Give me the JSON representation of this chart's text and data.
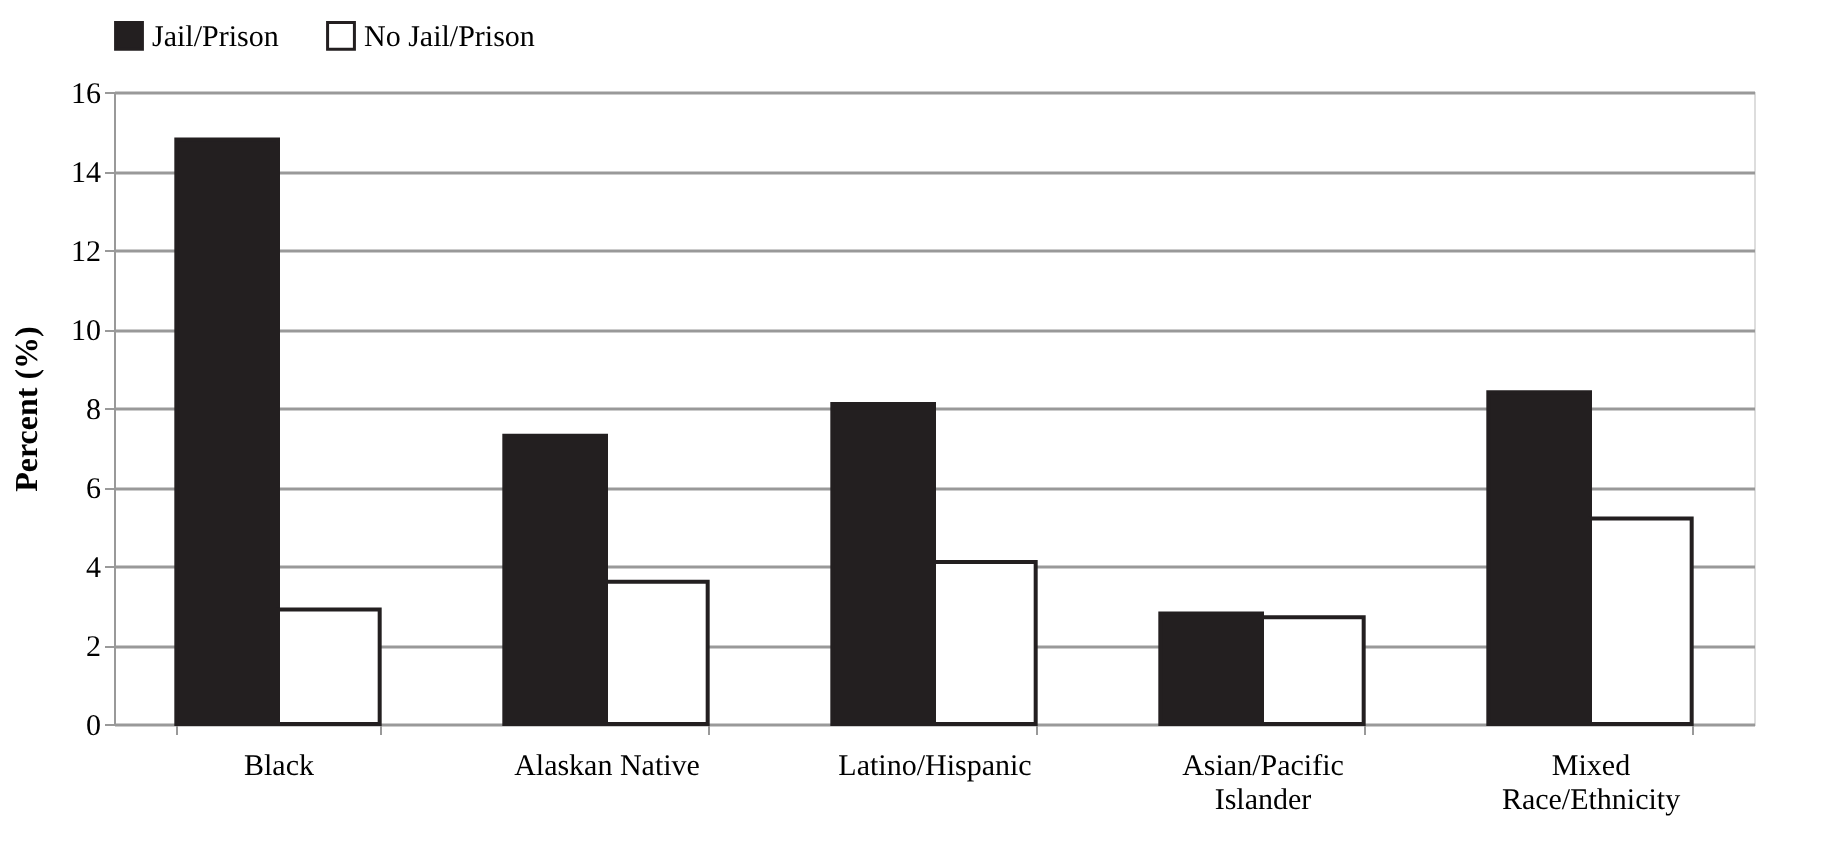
{
  "chart_data": {
    "type": "bar",
    "ylabel": "Percent (%)",
    "categories": [
      "Black",
      "Alaskan Native",
      "Latino/Hispanic",
      "Asian/Pacific Islander",
      "Mixed Race/Ethnicity"
    ],
    "series": [
      {
        "name": "Jail/Prison",
        "color": "#231f20",
        "values": [
          14.8,
          7.3,
          8.1,
          2.8,
          8.4
        ]
      },
      {
        "name": "No Jail/Prison",
        "color": "#ffffff",
        "values": [
          2.9,
          3.6,
          4.1,
          2.7,
          5.2
        ]
      }
    ],
    "ylim": [
      0,
      16
    ],
    "yticks": [
      0,
      2,
      4,
      6,
      8,
      10,
      12,
      14,
      16
    ],
    "grid": "y",
    "legend": "top"
  }
}
